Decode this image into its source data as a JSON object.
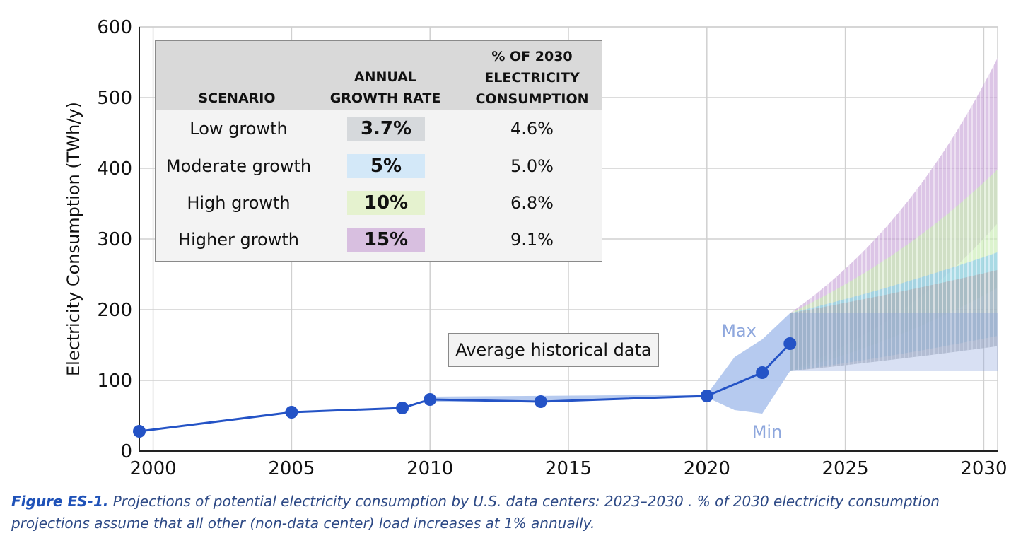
{
  "chart_data": {
    "type": "line",
    "ylabel": "Electricity Consumption (TWh/y)",
    "xlabel": "",
    "xlim": [
      1999.5,
      2030.5
    ],
    "ylim": [
      0,
      600
    ],
    "x_ticks": [
      "2000",
      "2005",
      "2010",
      "2015",
      "2020",
      "2025",
      "2030"
    ],
    "y_ticks": [
      "0",
      "100",
      "200",
      "300",
      "400",
      "500",
      "600"
    ],
    "grid": true,
    "historical": {
      "x": [
        1999.5,
        2005,
        2009,
        2010,
        2014,
        2020,
        2022,
        2023
      ],
      "y": [
        28,
        55,
        61,
        73,
        70,
        78,
        111,
        152
      ]
    },
    "historical_range": {
      "max": [
        {
          "x": 2010,
          "y": 77
        },
        {
          "x": 2020,
          "y": 80
        },
        {
          "x": 2021,
          "y": 133
        },
        {
          "x": 2022,
          "y": 158
        },
        {
          "x": 2023,
          "y": 195
        }
      ],
      "min": [
        {
          "x": 2010,
          "y": 69
        },
        {
          "x": 2020,
          "y": 76
        },
        {
          "x": 2021,
          "y": 58
        },
        {
          "x": 2022,
          "y": 53
        },
        {
          "x": 2023,
          "y": 113
        }
      ],
      "max_label": "Max",
      "min_label": "Min"
    },
    "projections": {
      "start_x": 2023,
      "start_min": 113,
      "start_max": 195,
      "end_x": 2030.5,
      "series": [
        {
          "name": "Low growth",
          "rate": 0.037,
          "color": "#a9aeb4"
        },
        {
          "name": "Moderate growth",
          "rate": 0.05,
          "color": "#8ecdf0"
        },
        {
          "name": "High growth",
          "rate": 0.1,
          "color": "#c9ecb4"
        },
        {
          "name": "Higher growth",
          "rate": 0.15,
          "color": "#c9a6d8"
        }
      ],
      "overlay_color": "#8fa6dc"
    },
    "annotation": "Average historical data"
  },
  "table": {
    "headers": {
      "scenario": "SCENARIO",
      "rate": [
        "ANNUAL",
        "GROWTH RATE"
      ],
      "share": [
        "% OF 2030",
        "ELECTRICITY",
        "CONSUMPTION"
      ]
    },
    "rows": [
      {
        "scenario": "Low growth",
        "rate": "3.7%",
        "share": "4.6%",
        "color": "#d6d9dc"
      },
      {
        "scenario": "Moderate growth",
        "rate": "5%",
        "share": "5.0%",
        "color": "#d3e8f8"
      },
      {
        "scenario": "High growth",
        "rate": "10%",
        "share": "6.8%",
        "color": "#e5f2cf"
      },
      {
        "scenario": "Higher growth",
        "rate": "15%",
        "share": "9.1%",
        "color": "#d8bfe0"
      }
    ]
  },
  "caption": {
    "figure": "Figure ES-1.",
    "text": " Projections of potential electricity consumption by U.S. data centers: 2023–2030 . % of 2030 electricity consumption projections assume that all other (non-data center) load increases at 1% annually."
  }
}
